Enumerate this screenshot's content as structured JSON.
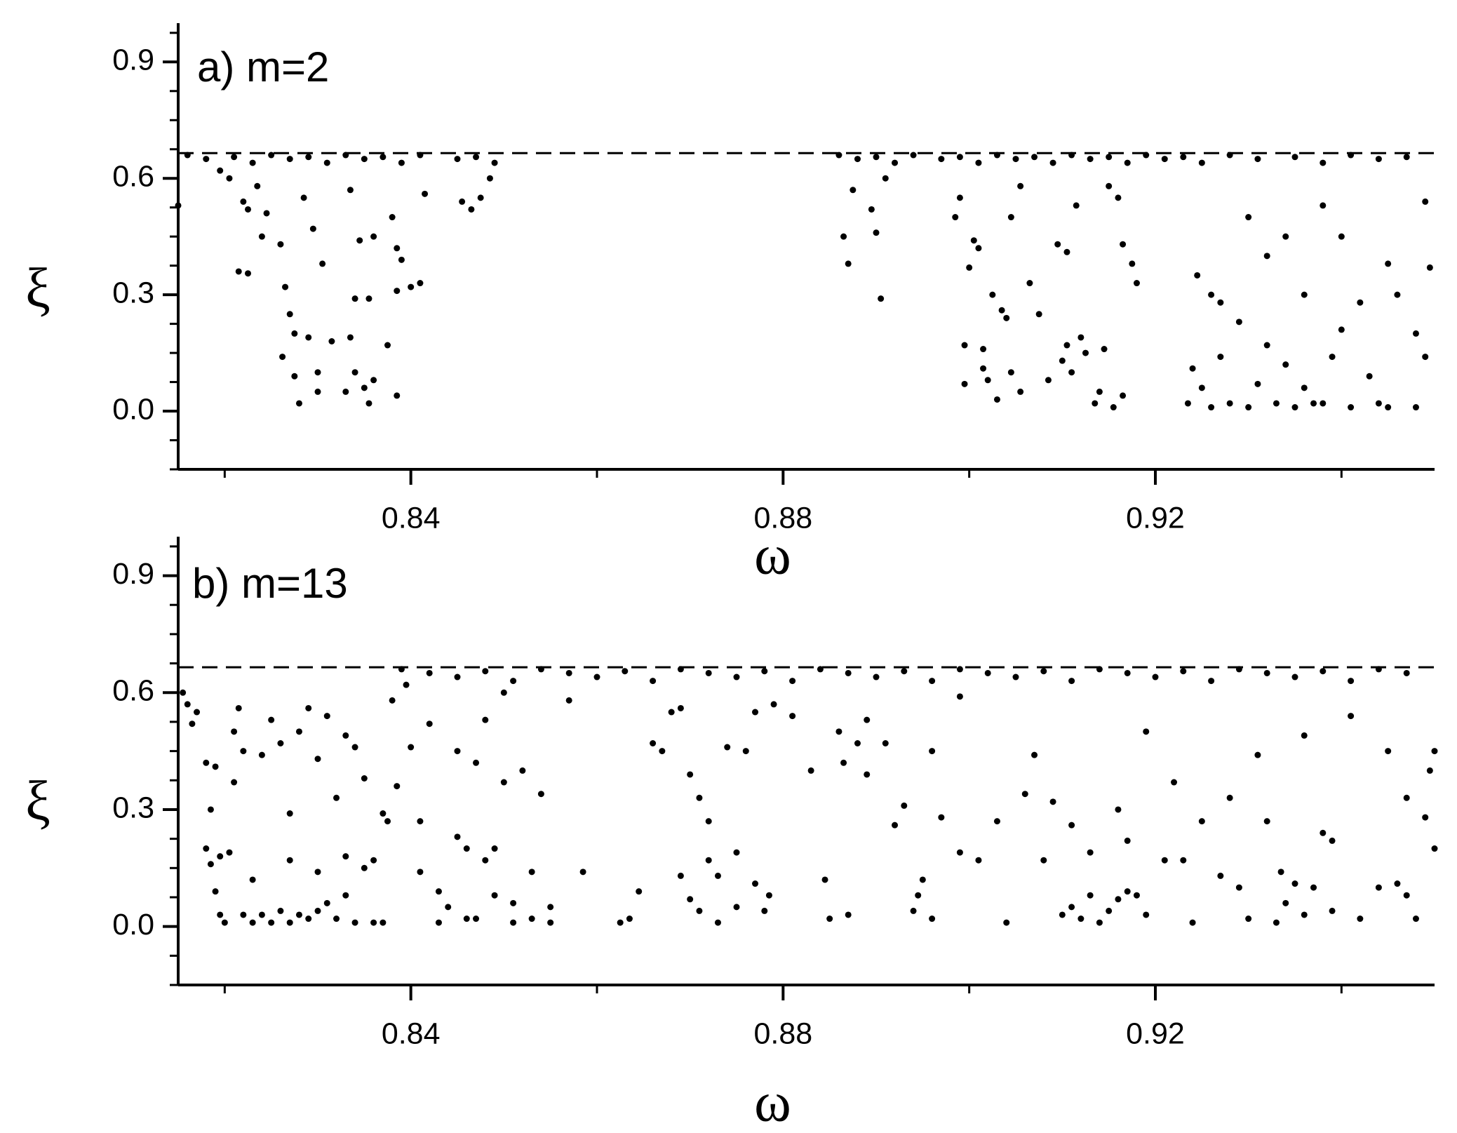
{
  "chart_data": [
    {
      "type": "scatter",
      "title": "a) m=2",
      "x_label": "ω",
      "y_label": "ξ",
      "color": "#000000",
      "xlim": [
        0.815,
        0.95
      ],
      "ylim": [
        -0.15,
        1.0
      ],
      "xticks": [
        0.84,
        0.88,
        0.92
      ],
      "yticks": [
        {
          "value": 0,
          "label": "0.0"
        },
        0.3,
        0.6,
        0.9
      ],
      "xminor": [
        0.82,
        0.86,
        0.9,
        0.94
      ],
      "yminor": [
        -0.15,
        -0.075,
        0.075,
        0.15,
        0.225,
        0.375,
        0.45,
        0.525,
        0.675,
        0.75,
        0.825,
        0.975
      ],
      "hline": 0.665,
      "hline_style": "dashed",
      "x": [
        0.816,
        0.818,
        0.821,
        0.823,
        0.825,
        0.827,
        0.829,
        0.831,
        0.833,
        0.835,
        0.837,
        0.839,
        0.841,
        0.845,
        0.847,
        0.849,
        0.886,
        0.888,
        0.89,
        0.892,
        0.894,
        0.897,
        0.899,
        0.901,
        0.903,
        0.905,
        0.907,
        0.909,
        0.911,
        0.913,
        0.915,
        0.917,
        0.919,
        0.921,
        0.923,
        0.925,
        0.928,
        0.931,
        0.935,
        0.938,
        0.941,
        0.944,
        0.947,
        0.815,
        0.8195,
        0.8205,
        0.822,
        0.8225,
        0.8235,
        0.824,
        0.8215,
        0.8225,
        0.8245,
        0.826,
        0.8265,
        0.827,
        0.8275,
        0.8262,
        0.8275,
        0.828,
        0.829,
        0.83,
        0.83,
        0.8285,
        0.8295,
        0.8305,
        0.8315,
        0.8335,
        0.833,
        0.834,
        0.835,
        0.836,
        0.8355,
        0.834,
        0.8355,
        0.8345,
        0.836,
        0.8335,
        0.8375,
        0.8385,
        0.838,
        0.8385,
        0.839,
        0.8385,
        0.84,
        0.841,
        0.8415,
        0.8455,
        0.8465,
        0.8475,
        0.8485,
        0.8865,
        0.887,
        0.8875,
        0.8895,
        0.89,
        0.8905,
        0.891,
        0.8985,
        0.899,
        0.8995,
        0.8995,
        0.9,
        0.9005,
        0.901,
        0.9015,
        0.9015,
        0.902,
        0.9025,
        0.9035,
        0.904,
        0.903,
        0.9045,
        0.9055,
        0.9045,
        0.9055,
        0.9065,
        0.9075,
        0.9085,
        0.9095,
        0.9105,
        0.91,
        0.9105,
        0.911,
        0.9115,
        0.912,
        0.9125,
        0.9135,
        0.914,
        0.9145,
        0.9155,
        0.915,
        0.916,
        0.9165,
        0.9175,
        0.918,
        0.9165,
        0.9235,
        0.924,
        0.9245,
        0.925,
        0.926,
        0.926,
        0.927,
        0.927,
        0.928,
        0.929,
        0.93,
        0.93,
        0.931,
        0.932,
        0.932,
        0.933,
        0.934,
        0.934,
        0.935,
        0.936,
        0.936,
        0.937,
        0.938,
        0.938,
        0.939,
        0.94,
        0.94,
        0.941,
        0.942,
        0.943,
        0.944,
        0.945,
        0.945,
        0.946,
        0.948,
        0.949,
        0.949,
        0.9495,
        0.948
      ],
      "values": [
        0.66,
        0.65,
        0.655,
        0.64,
        0.66,
        0.65,
        0.655,
        0.64,
        0.66,
        0.65,
        0.655,
        0.64,
        0.66,
        0.65,
        0.655,
        0.64,
        0.66,
        0.65,
        0.655,
        0.64,
        0.66,
        0.65,
        0.655,
        0.64,
        0.66,
        0.65,
        0.655,
        0.64,
        0.66,
        0.65,
        0.655,
        0.64,
        0.66,
        0.65,
        0.655,
        0.64,
        0.66,
        0.65,
        0.655,
        0.64,
        0.66,
        0.65,
        0.655,
        0.53,
        0.62,
        0.6,
        0.54,
        0.52,
        0.58,
        0.45,
        0.36,
        0.355,
        0.51,
        0.43,
        0.32,
        0.25,
        0.2,
        0.14,
        0.09,
        0.02,
        0.19,
        0.1,
        0.05,
        0.55,
        0.47,
        0.38,
        0.18,
        0.19,
        0.05,
        0.1,
        0.06,
        0.08,
        0.02,
        0.29,
        0.29,
        0.44,
        0.45,
        0.57,
        0.17,
        0.04,
        0.5,
        0.42,
        0.39,
        0.31,
        0.32,
        0.33,
        0.56,
        0.54,
        0.52,
        0.55,
        0.6,
        0.45,
        0.38,
        0.57,
        0.52,
        0.46,
        0.29,
        0.6,
        0.5,
        0.55,
        0.17,
        0.07,
        0.37,
        0.44,
        0.42,
        0.16,
        0.11,
        0.08,
        0.3,
        0.26,
        0.24,
        0.03,
        0.1,
        0.05,
        0.5,
        0.58,
        0.33,
        0.25,
        0.08,
        0.43,
        0.41,
        0.13,
        0.17,
        0.1,
        0.53,
        0.19,
        0.15,
        0.02,
        0.05,
        0.16,
        0.01,
        0.58,
        0.55,
        0.43,
        0.38,
        0.33,
        0.04,
        0.02,
        0.11,
        0.35,
        0.06,
        0.3,
        0.01,
        0.14,
        0.28,
        0.02,
        0.23,
        0.5,
        0.01,
        0.07,
        0.17,
        0.4,
        0.02,
        0.45,
        0.12,
        0.01,
        0.3,
        0.06,
        0.02,
        0.53,
        0.02,
        0.14,
        0.45,
        0.21,
        0.01,
        0.28,
        0.09,
        0.02,
        0.38,
        0.01,
        0.3,
        0.2,
        0.14,
        0.54,
        0.37,
        0.01
      ]
    },
    {
      "type": "scatter",
      "title": "b) m=13",
      "x_label": "ω",
      "y_label": "ξ",
      "color": "#000000",
      "xlim": [
        0.815,
        0.95
      ],
      "ylim": [
        -0.15,
        1.0
      ],
      "xticks": [
        0.84,
        0.88,
        0.92
      ],
      "yticks": [
        {
          "value": 0,
          "label": "0.0"
        },
        0.3,
        0.6,
        0.9
      ],
      "xminor": [
        0.82,
        0.86,
        0.9,
        0.94
      ],
      "yminor": [
        -0.15,
        -0.075,
        0.075,
        0.15,
        0.225,
        0.375,
        0.45,
        0.525,
        0.675,
        0.75,
        0.825,
        0.975
      ],
      "hline": 0.665,
      "hline_style": "dashed",
      "x": [
        0.839,
        0.842,
        0.845,
        0.848,
        0.851,
        0.854,
        0.857,
        0.86,
        0.863,
        0.866,
        0.869,
        0.872,
        0.875,
        0.878,
        0.881,
        0.884,
        0.887,
        0.89,
        0.893,
        0.896,
        0.899,
        0.902,
        0.905,
        0.908,
        0.911,
        0.914,
        0.917,
        0.92,
        0.923,
        0.926,
        0.929,
        0.932,
        0.935,
        0.938,
        0.941,
        0.944,
        0.947,
        0.8155,
        0.816,
        0.8165,
        0.817,
        0.818,
        0.819,
        0.8185,
        0.818,
        0.8185,
        0.819,
        0.8195,
        0.8195,
        0.82,
        0.8205,
        0.821,
        0.821,
        0.8215,
        0.822,
        0.822,
        0.823,
        0.823,
        0.824,
        0.824,
        0.825,
        0.825,
        0.826,
        0.826,
        0.827,
        0.827,
        0.827,
        0.828,
        0.828,
        0.829,
        0.829,
        0.83,
        0.83,
        0.83,
        0.831,
        0.831,
        0.832,
        0.832,
        0.833,
        0.833,
        0.833,
        0.834,
        0.834,
        0.835,
        0.835,
        0.836,
        0.836,
        0.837,
        0.837,
        0.8375,
        0.8385,
        0.838,
        0.8395,
        0.84,
        0.841,
        0.841,
        0.842,
        0.843,
        0.843,
        0.844,
        0.845,
        0.845,
        0.846,
        0.846,
        0.847,
        0.847,
        0.848,
        0.848,
        0.849,
        0.849,
        0.85,
        0.85,
        0.851,
        0.851,
        0.852,
        0.853,
        0.853,
        0.854,
        0.855,
        0.855,
        0.857,
        0.8585,
        0.8625,
        0.8635,
        0.8645,
        0.866,
        0.867,
        0.868,
        0.869,
        0.869,
        0.87,
        0.87,
        0.871,
        0.871,
        0.872,
        0.872,
        0.873,
        0.873,
        0.874,
        0.875,
        0.875,
        0.876,
        0.877,
        0.877,
        0.878,
        0.8785,
        0.879,
        0.881,
        0.883,
        0.8845,
        0.885,
        0.886,
        0.8865,
        0.887,
        0.888,
        0.889,
        0.889,
        0.891,
        0.892,
        0.893,
        0.894,
        0.8945,
        0.895,
        0.896,
        0.896,
        0.897,
        0.899,
        0.899,
        0.901,
        0.903,
        0.904,
        0.906,
        0.907,
        0.908,
        0.909,
        0.91,
        0.911,
        0.911,
        0.912,
        0.913,
        0.913,
        0.914,
        0.915,
        0.916,
        0.916,
        0.917,
        0.917,
        0.918,
        0.919,
        0.919,
        0.921,
        0.922,
        0.923,
        0.924,
        0.925,
        0.927,
        0.928,
        0.929,
        0.93,
        0.931,
        0.932,
        0.933,
        0.9335,
        0.934,
        0.935,
        0.936,
        0.936,
        0.937,
        0.938,
        0.939,
        0.939,
        0.941,
        0.942,
        0.944,
        0.945,
        0.946,
        0.947,
        0.947,
        0.948,
        0.949,
        0.9495,
        0.95,
        0.95
      ],
      "values": [
        0.66,
        0.65,
        0.64,
        0.655,
        0.63,
        0.66,
        0.65,
        0.64,
        0.655,
        0.63,
        0.66,
        0.65,
        0.64,
        0.655,
        0.63,
        0.66,
        0.65,
        0.64,
        0.655,
        0.63,
        0.66,
        0.65,
        0.64,
        0.655,
        0.63,
        0.66,
        0.65,
        0.64,
        0.655,
        0.63,
        0.66,
        0.65,
        0.64,
        0.655,
        0.63,
        0.66,
        0.65,
        0.6,
        0.57,
        0.52,
        0.55,
        0.42,
        0.41,
        0.3,
        0.2,
        0.16,
        0.09,
        0.18,
        0.03,
        0.01,
        0.19,
        0.5,
        0.37,
        0.56,
        0.45,
        0.03,
        0.12,
        0.01,
        0.44,
        0.03,
        0.53,
        0.01,
        0.47,
        0.04,
        0.29,
        0.17,
        0.01,
        0.5,
        0.03,
        0.56,
        0.02,
        0.43,
        0.14,
        0.04,
        0.54,
        0.06,
        0.33,
        0.02,
        0.49,
        0.18,
        0.08,
        0.46,
        0.01,
        0.38,
        0.15,
        0.17,
        0.01,
        0.29,
        0.01,
        0.27,
        0.36,
        0.58,
        0.62,
        0.46,
        0.27,
        0.14,
        0.52,
        0.09,
        0.01,
        0.05,
        0.45,
        0.23,
        0.2,
        0.02,
        0.42,
        0.02,
        0.53,
        0.17,
        0.2,
        0.08,
        0.6,
        0.37,
        0.06,
        0.01,
        0.4,
        0.14,
        0.02,
        0.34,
        0.05,
        0.01,
        0.58,
        0.14,
        0.01,
        0.02,
        0.09,
        0.47,
        0.45,
        0.55,
        0.13,
        0.56,
        0.39,
        0.07,
        0.33,
        0.04,
        0.27,
        0.17,
        0.13,
        0.01,
        0.46,
        0.19,
        0.05,
        0.45,
        0.11,
        0.55,
        0.04,
        0.08,
        0.57,
        0.54,
        0.4,
        0.12,
        0.02,
        0.5,
        0.42,
        0.03,
        0.47,
        0.53,
        0.39,
        0.47,
        0.26,
        0.31,
        0.04,
        0.08,
        0.12,
        0.02,
        0.45,
        0.28,
        0.19,
        0.59,
        0.17,
        0.27,
        0.01,
        0.34,
        0.44,
        0.17,
        0.32,
        0.03,
        0.26,
        0.05,
        0.02,
        0.19,
        0.08,
        0.01,
        0.04,
        0.3,
        0.07,
        0.22,
        0.09,
        0.08,
        0.5,
        0.03,
        0.17,
        0.37,
        0.17,
        0.01,
        0.27,
        0.13,
        0.33,
        0.1,
        0.02,
        0.44,
        0.27,
        0.01,
        0.14,
        0.06,
        0.11,
        0.49,
        0.03,
        0.1,
        0.24,
        0.22,
        0.04,
        0.54,
        0.02,
        0.1,
        0.45,
        0.11,
        0.33,
        0.08,
        0.02,
        0.28,
        0.4,
        0.2,
        0.45
      ]
    }
  ]
}
